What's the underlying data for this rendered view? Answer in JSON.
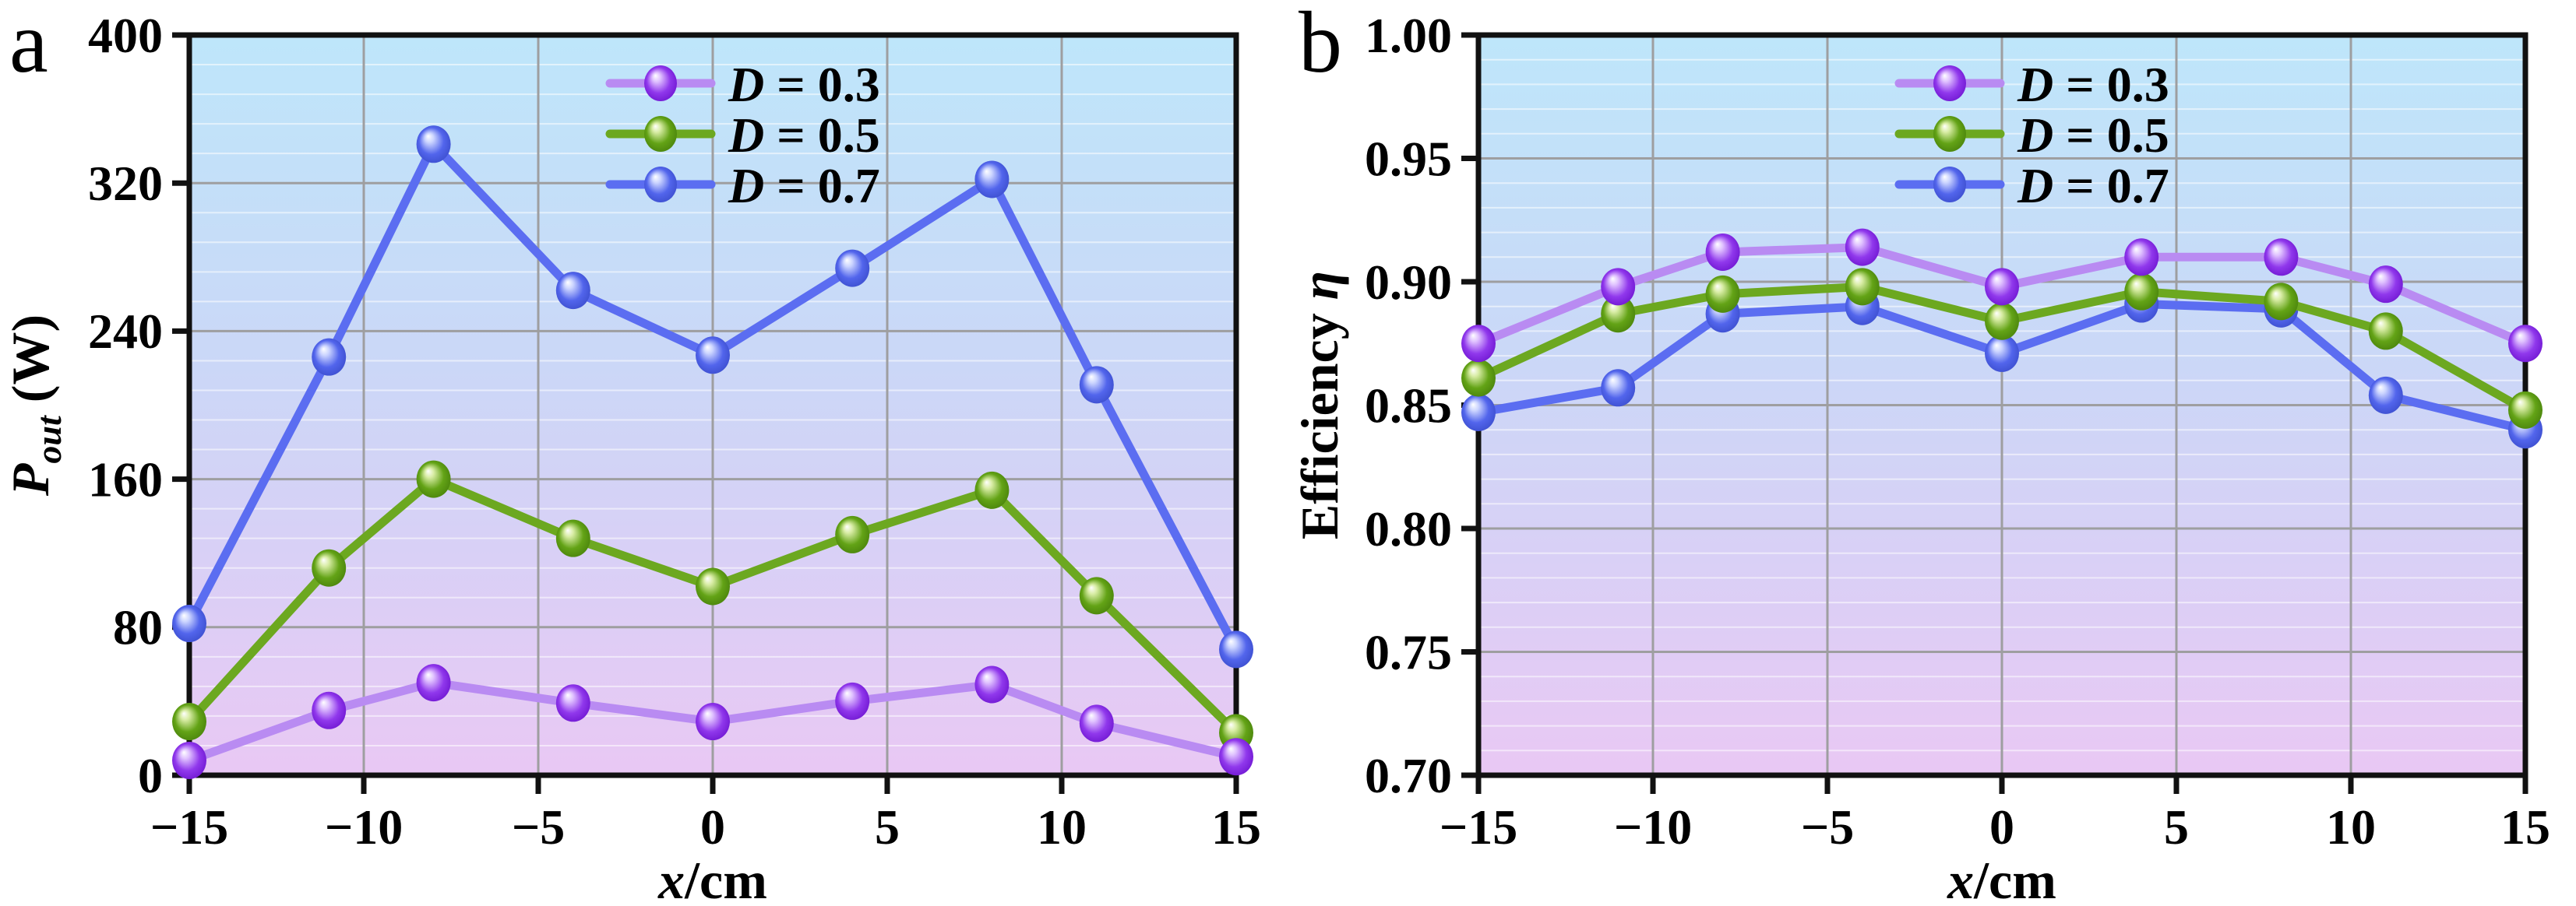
{
  "figure_background": "#ffffff",
  "colors": {
    "background_top": "#bee6fa",
    "background_mid": "#cbd7f7",
    "background_bottom": "#e9c8f4",
    "grid_major": "#9e9ea0",
    "grid_minor": "#ffffff",
    "axis": "#111111",
    "text": "#000000",
    "series": {
      "purple": {
        "line": "#b98bf2",
        "ball_light": "#e0c2ff",
        "ball_main": "#9038ec",
        "ball_dark": "#6d14cf"
      },
      "green": {
        "line": "#6ca820",
        "ball_light": "#d9eda6",
        "ball_main": "#63a316",
        "ball_dark": "#47800b"
      },
      "blue": {
        "line": "#5b6df1",
        "ball_light": "#ccd5ff",
        "ball_main": "#5265ec",
        "ball_dark": "#3a4ccb"
      }
    }
  },
  "chart_data": [
    {
      "type": "line",
      "panel_label": "a",
      "title": "",
      "xlabel_parts": [
        {
          "t": "x",
          "italic": true
        },
        {
          "t": "/cm",
          "italic": false
        }
      ],
      "ylabel_parts": [
        {
          "t": "P",
          "italic": true
        },
        {
          "t": "out",
          "italic": true,
          "sub": true
        },
        {
          "t": " (W)",
          "italic": false
        }
      ],
      "xlim": [
        -15,
        15
      ],
      "ylim": [
        0,
        400
      ],
      "xticks": [
        -15,
        -10,
        -5,
        0,
        5,
        10,
        15
      ],
      "xtick_labels": [
        "−15",
        "−10",
        "−5",
        "0",
        "5",
        "10",
        "15"
      ],
      "yticks": [
        0,
        80,
        160,
        240,
        320,
        400
      ],
      "ytick_labels": [
        "0",
        "80",
        "160",
        "240",
        "320",
        "400"
      ],
      "y_minor_step": 16,
      "grid": true,
      "legend_position": "top-center",
      "x": [
        -15,
        -11,
        -8,
        -4,
        0,
        4,
        8,
        11,
        15
      ],
      "series": [
        {
          "label": "D = 0.3",
          "sym": "D",
          "rest": " = 0.3",
          "color": "purple",
          "values": [
            8,
            35,
            50,
            39,
            29,
            40,
            49,
            28,
            10
          ]
        },
        {
          "label": "D = 0.5",
          "sym": "D",
          "rest": " = 0.5",
          "color": "green",
          "values": [
            29,
            112,
            160,
            128,
            102,
            130,
            154,
            97,
            23
          ]
        },
        {
          "label": "D = 0.7",
          "sym": "D",
          "rest": " = 0.7",
          "color": "blue",
          "values": [
            82,
            226,
            341,
            262,
            227,
            274,
            322,
            211,
            68
          ]
        }
      ]
    },
    {
      "type": "line",
      "panel_label": "b",
      "title": "",
      "xlabel_parts": [
        {
          "t": "x",
          "italic": true
        },
        {
          "t": "/cm",
          "italic": false
        }
      ],
      "ylabel_parts": [
        {
          "t": "Efficiency ",
          "italic": false
        },
        {
          "t": "η",
          "italic": true
        }
      ],
      "xlim": [
        -15,
        15
      ],
      "ylim": [
        0.7,
        1.0
      ],
      "xticks": [
        -15,
        -10,
        -5,
        0,
        5,
        10,
        15
      ],
      "xtick_labels": [
        "−15",
        "−10",
        "−5",
        "0",
        "5",
        "10",
        "15"
      ],
      "yticks": [
        0.7,
        0.75,
        0.8,
        0.85,
        0.9,
        0.95,
        1.0
      ],
      "ytick_labels": [
        "0.70",
        "0.75",
        "0.80",
        "0.85",
        "0.90",
        "0.95",
        "1.00"
      ],
      "y_minor_step": 0.01,
      "grid": true,
      "legend_position": "top-center",
      "x": [
        -15,
        -11,
        -8,
        -4,
        0,
        4,
        8,
        11,
        15
      ],
      "series": [
        {
          "label": "D = 0.3",
          "sym": "D",
          "rest": " = 0.3",
          "color": "purple",
          "values": [
            0.875,
            0.898,
            0.912,
            0.914,
            0.898,
            0.91,
            0.91,
            0.899,
            0.875
          ]
        },
        {
          "label": "D = 0.5",
          "sym": "D",
          "rest": " = 0.5",
          "color": "green",
          "values": [
            0.861,
            0.887,
            0.895,
            0.898,
            0.884,
            0.896,
            0.892,
            0.88,
            0.848
          ]
        },
        {
          "label": "D = 0.7",
          "sym": "D",
          "rest": " = 0.7",
          "color": "blue",
          "values": [
            0.847,
            0.857,
            0.887,
            0.89,
            0.871,
            0.891,
            0.889,
            0.854,
            0.84
          ]
        }
      ]
    }
  ]
}
